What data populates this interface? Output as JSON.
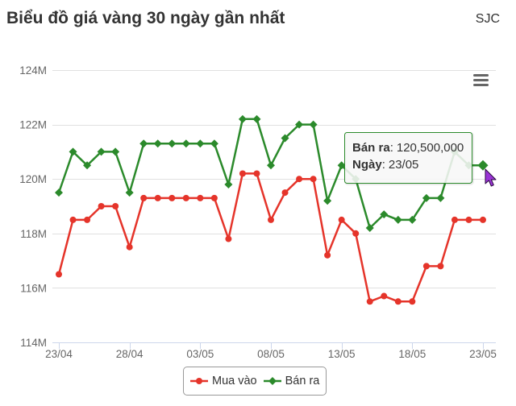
{
  "header": {
    "brand": "SJC"
  },
  "toolbar": {
    "menu_icon": "menu-icon"
  },
  "pointer": {
    "icon": "mouse-cursor-icon"
  },
  "chart_data": {
    "type": "line",
    "title": "Biểu đồ giá vàng 30 ngày gần nhất",
    "x": [
      "23/04",
      "24/04",
      "25/04",
      "26/04",
      "27/04",
      "28/04",
      "29/04",
      "30/04",
      "01/05",
      "02/05",
      "03/05",
      "04/05",
      "05/05",
      "06/05",
      "07/05",
      "08/05",
      "09/05",
      "10/05",
      "11/05",
      "12/05",
      "13/05",
      "14/05",
      "15/05",
      "16/05",
      "17/05",
      "18/05",
      "19/05",
      "20/05",
      "21/05",
      "22/05",
      "23/05"
    ],
    "xticks": [
      "23/04",
      "28/04",
      "03/05",
      "08/05",
      "13/05",
      "18/05",
      "23/05"
    ],
    "yticks": [
      {
        "value": 114000000,
        "label": "114M"
      },
      {
        "value": 116000000,
        "label": "116M"
      },
      {
        "value": 118000000,
        "label": "118M"
      },
      {
        "value": 120000000,
        "label": "120M"
      },
      {
        "value": 122000000,
        "label": "122M"
      },
      {
        "value": 124000000,
        "label": "124M"
      }
    ],
    "ylim": [
      114000000,
      124000000
    ],
    "grid": true,
    "legend": "bottom-center",
    "series": [
      {
        "name": "Mua vào",
        "color": "#e5342a",
        "marker": "circle",
        "values": [
          116500000,
          118500000,
          118500000,
          119000000,
          119000000,
          117500000,
          119300000,
          119300000,
          119300000,
          119300000,
          119300000,
          119300000,
          117800000,
          120200000,
          120200000,
          118500000,
          119500000,
          120000000,
          120000000,
          117200000,
          118500000,
          118000000,
          115500000,
          115700000,
          115500000,
          115500000,
          116800000,
          116800000,
          118500000,
          118500000,
          118500000
        ]
      },
      {
        "name": "Bán ra",
        "color": "#2b8a2b",
        "marker": "diamond",
        "values": [
          119500000,
          121000000,
          120500000,
          121000000,
          121000000,
          119500000,
          121300000,
          121300000,
          121300000,
          121300000,
          121300000,
          121300000,
          119800000,
          122200000,
          122200000,
          120500000,
          121500000,
          122000000,
          122000000,
          119200000,
          120500000,
          120000000,
          118200000,
          118700000,
          118500000,
          118500000,
          119300000,
          119300000,
          121000000,
          120500000,
          120500000
        ]
      }
    ],
    "tooltip": {
      "series": "Bán ra",
      "sep": ":",
      "value": "120,500,000",
      "date_label": "Ngày",
      "date": "23/05"
    }
  }
}
